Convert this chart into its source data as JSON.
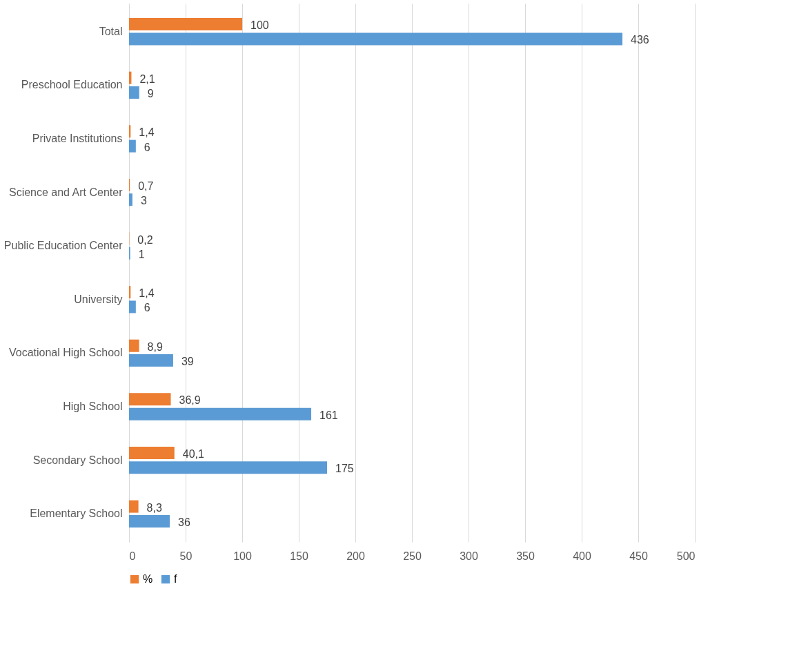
{
  "chart_data": {
    "type": "bar",
    "orientation": "horizontal",
    "categories": [
      "Total",
      "Preschool Education",
      "Private Institutions",
      "Science and Art Center",
      "Public Education Center",
      "University",
      "Vocational High School",
      "High School",
      "Secondary School",
      "Elementary School"
    ],
    "series": [
      {
        "name": "%",
        "color": "#ed7d31",
        "values": [
          100,
          2.1,
          1.4,
          0.7,
          0.2,
          1.4,
          8.9,
          36.9,
          40.1,
          8.3
        ],
        "value_labels": [
          "100",
          "2,1",
          "1,4",
          "0,7",
          "0,2",
          "1,4",
          "8,9",
          "36,9",
          "40,1",
          "8,3"
        ]
      },
      {
        "name": "f",
        "color": "#5b9bd5",
        "values": [
          436,
          9,
          6,
          3,
          1,
          6,
          39,
          161,
          175,
          36
        ],
        "value_labels": [
          "436",
          "9",
          "6",
          "3",
          "1",
          "6",
          "39",
          "161",
          "175",
          "36"
        ]
      }
    ],
    "xlim": [
      0,
      500
    ],
    "xticks": [
      0,
      50,
      100,
      150,
      200,
      250,
      300,
      350,
      400,
      450,
      500
    ],
    "grid": "x",
    "legend": "bottom"
  }
}
